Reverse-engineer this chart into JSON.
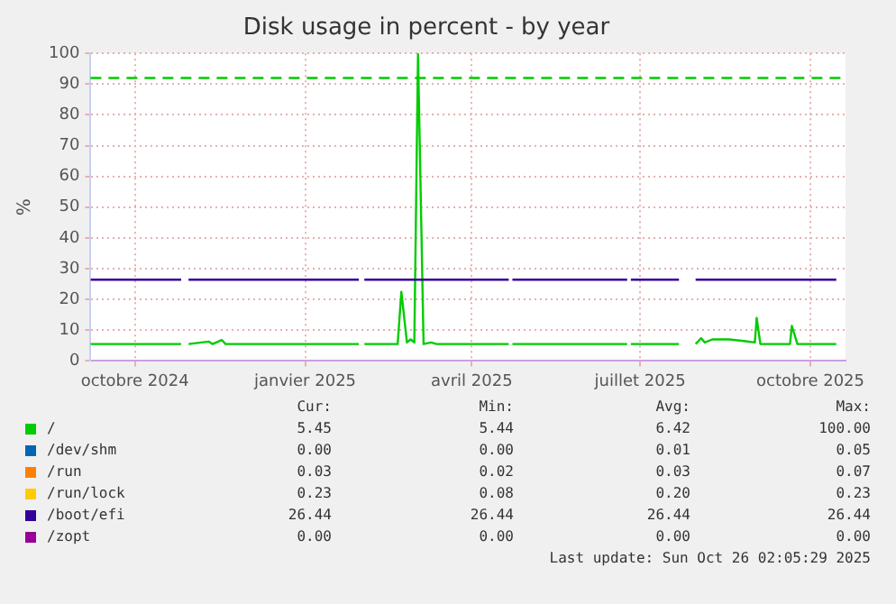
{
  "chart_data": {
    "type": "line",
    "title": "Disk usage in percent - by year",
    "ylabel": "%",
    "x": [
      "2024-09-07",
      "2024-10-26",
      "2024-10-27",
      "2024-10-30",
      "2024-11-10",
      "2024-11-12",
      "2024-11-17",
      "2024-11-19",
      "2025-01-30",
      "2025-01-31",
      "2025-02-02",
      "2025-02-20",
      "2025-02-22",
      "2025-02-25",
      "2025-02-27",
      "2025-03-01",
      "2025-03-03",
      "2025-03-06",
      "2025-03-10",
      "2025-03-13",
      "2025-04-21",
      "2025-04-22",
      "2025-04-23",
      "2025-06-24",
      "2025-06-25",
      "2025-06-26",
      "2025-07-22",
      "2025-07-23",
      "2025-07-31",
      "2025-08-03",
      "2025-08-05",
      "2025-08-09",
      "2025-08-18",
      "2025-08-26",
      "2025-09-01",
      "2025-09-02",
      "2025-09-04",
      "2025-09-20",
      "2025-09-21",
      "2025-09-24",
      "2025-10-15"
    ],
    "series": [
      {
        "name": "/",
        "color": "#00cc00",
        "values": [
          5.5,
          5.5,
          null,
          5.5,
          6.3,
          5.5,
          6.8,
          5.5,
          5.5,
          null,
          5.5,
          5.5,
          22.5,
          6,
          7,
          6,
          100,
          5.5,
          6,
          5.5,
          5.5,
          null,
          5.5,
          5.5,
          null,
          5.5,
          5.5,
          null,
          5.5,
          7.4,
          6,
          7,
          7,
          6.5,
          6,
          14,
          5.5,
          5.5,
          11.4,
          5.5,
          5.5
        ]
      },
      {
        "name": "/dev/shm",
        "color": "#0066b3",
        "values": [
          null,
          null,
          null,
          null,
          null,
          null,
          null,
          null,
          null,
          null,
          null,
          null,
          null,
          null,
          null,
          null,
          null,
          null,
          null,
          null,
          null,
          null,
          null,
          null,
          null,
          null,
          null,
          null,
          null,
          null,
          null,
          null,
          null,
          null,
          null,
          null,
          null,
          null,
          null,
          null,
          null
        ]
      },
      {
        "name": "/run",
        "color": "#ff8000",
        "values": [
          null,
          null,
          null,
          null,
          null,
          null,
          null,
          null,
          null,
          null,
          null,
          null,
          null,
          null,
          null,
          null,
          null,
          null,
          null,
          null,
          null,
          null,
          null,
          null,
          null,
          null,
          null,
          null,
          null,
          null,
          null,
          null,
          null,
          null,
          null,
          null,
          null,
          null,
          null,
          null,
          null
        ]
      },
      {
        "name": "/run/lock",
        "color": "#ffcc00",
        "values": [
          null,
          null,
          null,
          null,
          null,
          null,
          null,
          null,
          null,
          null,
          null,
          null,
          null,
          null,
          null,
          null,
          null,
          null,
          null,
          null,
          null,
          null,
          null,
          null,
          null,
          null,
          null,
          null,
          null,
          null,
          null,
          null,
          null,
          null,
          null,
          null,
          null,
          null,
          null,
          null,
          null
        ]
      },
      {
        "name": "/boot/efi",
        "color": "#330099",
        "values": [
          26.4,
          26.4,
          null,
          26.4,
          26.4,
          26.4,
          26.4,
          26.4,
          26.4,
          null,
          26.4,
          26.4,
          26.4,
          26.4,
          26.4,
          26.4,
          26.4,
          26.4,
          26.4,
          26.4,
          26.4,
          null,
          26.4,
          26.4,
          null,
          26.4,
          26.4,
          null,
          26.4,
          26.4,
          26.4,
          26.4,
          26.4,
          26.4,
          26.4,
          26.4,
          26.4,
          26.4,
          26.4,
          26.4,
          26.4
        ]
      },
      {
        "name": "/zopt",
        "color": "#990099",
        "values": [
          null,
          null,
          null,
          null,
          null,
          null,
          null,
          null,
          null,
          null,
          null,
          null,
          null,
          null,
          null,
          null,
          null,
          null,
          null,
          null,
          null,
          null,
          null,
          null,
          null,
          null,
          null,
          null,
          null,
          null,
          null,
          null,
          null,
          null,
          null,
          null,
          null,
          null,
          null,
          null,
          null
        ]
      }
    ],
    "xlim": [
      "2024-09-07",
      "2025-10-20"
    ],
    "xticks": [
      {
        "value": "2024-10-01",
        "label": "octobre 2024"
      },
      {
        "value": "2025-01-01",
        "label": "janvier 2025"
      },
      {
        "value": "2025-04-01",
        "label": "avril 2025"
      },
      {
        "value": "2025-07-01",
        "label": "juillet 2025"
      },
      {
        "value": "2025-10-01",
        "label": "octobre 2025"
      }
    ],
    "ylim": [
      0,
      100
    ],
    "yticks": [
      0,
      10,
      20,
      30,
      40,
      50,
      60,
      70,
      80,
      90,
      100
    ],
    "grid": true,
    "legend": "bottom",
    "marker": "none",
    "line_style": "solid",
    "ref_lines": [
      {
        "axis": "y",
        "value": 92,
        "color": "#00cc00",
        "line_style": "dashed"
      }
    ],
    "annotations": [
      "Cur:",
      "Min:",
      "Avg:",
      "Max:",
      "5.45",
      "5.44",
      "6.42",
      "100.00",
      "0.00",
      "0.00",
      "0.01",
      "0.05",
      "0.03",
      "0.02",
      "0.03",
      "0.07",
      "0.23",
      "0.08",
      "0.20",
      "0.23",
      "26.44",
      "26.44",
      "26.44",
      "26.44",
      "0.00",
      "0.00",
      "0.00",
      "0.00",
      "Last update: Sun Oct 26 02:05:29 2025"
    ]
  }
}
